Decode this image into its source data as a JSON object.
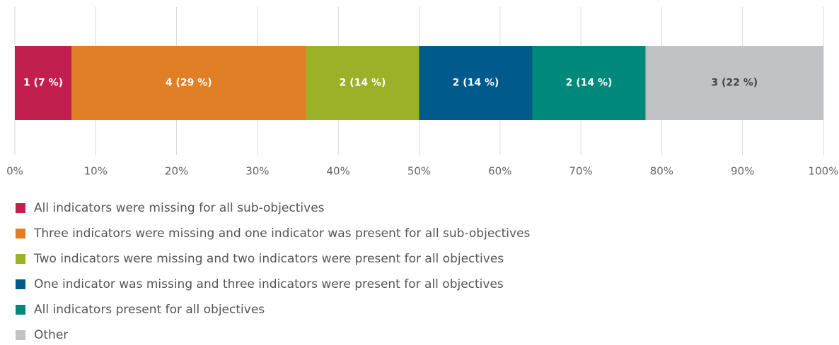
{
  "chart_data": {
    "type": "bar",
    "orientation": "horizontal",
    "stacked": true,
    "xlim": [
      0,
      100
    ],
    "xticks": [
      {
        "value": 0,
        "label": "0%"
      },
      {
        "value": 10,
        "label": "10%"
      },
      {
        "value": 20,
        "label": "20%"
      },
      {
        "value": 30,
        "label": "30%"
      },
      {
        "value": 40,
        "label": "40%"
      },
      {
        "value": 50,
        "label": "50%"
      },
      {
        "value": 60,
        "label": "60%"
      },
      {
        "value": 70,
        "label": "70%"
      },
      {
        "value": 80,
        "label": "80%"
      },
      {
        "value": 90,
        "label": "90%"
      },
      {
        "value": 100,
        "label": "100%"
      }
    ],
    "grid": true,
    "legend": "bottom",
    "series": [
      {
        "name": "All indicators were missing for all sub-objectives",
        "color": "#c1204f",
        "label_color": "#ffffff",
        "values": [
          7
        ],
        "value_labels": [
          "1 (7 %)"
        ]
      },
      {
        "name": "Three indicators were missing and one indicator was present for all sub-objectives",
        "color": "#e07f26",
        "label_color": "#ffffff",
        "values": [
          29
        ],
        "value_labels": [
          "4 (29 %)"
        ]
      },
      {
        "name": "Two indicators were missing and two indicators were present for all objectives",
        "color": "#9cb128",
        "label_color": "#ffffff",
        "values": [
          14
        ],
        "value_labels": [
          "2 (14 %)"
        ]
      },
      {
        "name": "One indicator was missing and three indicators were present for all objectives",
        "color": "#005a8c",
        "label_color": "#ffffff",
        "values": [
          14
        ],
        "value_labels": [
          "2 (14 %)"
        ]
      },
      {
        "name": "All indicators present for all objectives",
        "color": "#00897a",
        "label_color": "#ffffff",
        "values": [
          14
        ],
        "value_labels": [
          "2 (14 %)"
        ]
      },
      {
        "name": "Other",
        "color": "#c1c2c6",
        "label_color": "#444444",
        "values": [
          22
        ],
        "value_labels": [
          "3 (22 %)"
        ]
      }
    ]
  }
}
